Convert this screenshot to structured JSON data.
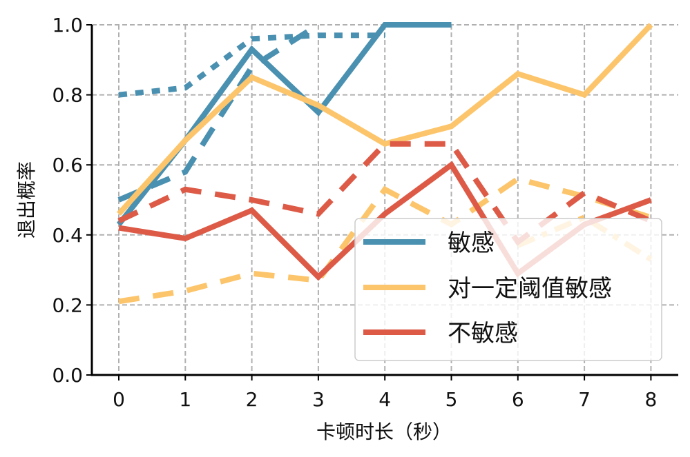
{
  "chart_data": {
    "type": "line",
    "title": "",
    "xlabel": "卡顿时长（秒）",
    "ylabel": "退出概率",
    "x": [
      0,
      1,
      2,
      3,
      4,
      5,
      6,
      7,
      8
    ],
    "x_ticks": [
      "0",
      "1",
      "2",
      "3",
      "4",
      "5",
      "6",
      "7",
      "8"
    ],
    "y_ticks": [
      "0.0",
      "0.2",
      "0.4",
      "0.6",
      "0.8",
      "1.0"
    ],
    "xlim": [
      -0.4,
      8.4
    ],
    "ylim": [
      0,
      1
    ],
    "grid": true,
    "legend_position": "lower-right",
    "legend": [
      "敏感",
      "对一定阈值敏感",
      "不敏感"
    ],
    "colors": {
      "敏感": "#4a90b0",
      "对一定阈值敏感": "#fcc56b",
      "不敏感": "#dd5a47"
    },
    "series": [
      {
        "group": "敏感",
        "style": "solid",
        "color": "#4a90b0",
        "x": [
          0,
          1,
          2,
          3,
          4,
          5
        ],
        "values": [
          0.43,
          0.67,
          0.93,
          0.75,
          1.0,
          1.0
        ]
      },
      {
        "group": "敏感",
        "style": "dashed",
        "color": "#4a90b0",
        "x": [
          0,
          1,
          2,
          3
        ],
        "values": [
          0.5,
          0.58,
          0.88,
          1.0
        ]
      },
      {
        "group": "敏感",
        "style": "dotted",
        "color": "#4a90b0",
        "x": [
          0,
          1,
          2,
          3,
          4
        ],
        "values": [
          0.8,
          0.82,
          0.96,
          0.97,
          0.97
        ]
      },
      {
        "group": "对一定阈值敏感",
        "style": "solid",
        "color": "#fcc56b",
        "x": [
          0,
          1,
          2,
          3,
          4,
          5,
          6,
          7,
          8
        ],
        "values": [
          0.46,
          0.67,
          0.85,
          0.77,
          0.66,
          0.71,
          0.86,
          0.8,
          1.0
        ]
      },
      {
        "group": "对一定阈值敏感",
        "style": "dashed",
        "color": "#fcc56b",
        "x": [
          0,
          1,
          2,
          3,
          4,
          5,
          6,
          7,
          8
        ],
        "values": [
          0.21,
          0.24,
          0.29,
          0.27,
          0.53,
          0.43,
          0.56,
          0.51,
          0.45
        ]
      },
      {
        "group": "对一定阈值敏感",
        "style": "dashdot",
        "color": "#fcc56b",
        "x": [
          6,
          7,
          8
        ],
        "values": [
          0.37,
          0.45,
          0.33
        ]
      },
      {
        "group": "不敏感",
        "style": "solid",
        "color": "#dd5a47",
        "x": [
          0,
          1,
          2,
          3,
          4,
          5,
          6,
          7,
          8
        ],
        "values": [
          0.42,
          0.39,
          0.47,
          0.28,
          0.46,
          0.6,
          0.29,
          0.43,
          0.5
        ]
      },
      {
        "group": "不敏感",
        "style": "dashed",
        "color": "#dd5a47",
        "x": [
          0,
          1,
          2,
          3,
          4,
          5,
          6,
          7,
          8
        ],
        "values": [
          0.44,
          0.53,
          0.5,
          0.46,
          0.66,
          0.66,
          0.38,
          0.52,
          0.44
        ]
      }
    ]
  }
}
